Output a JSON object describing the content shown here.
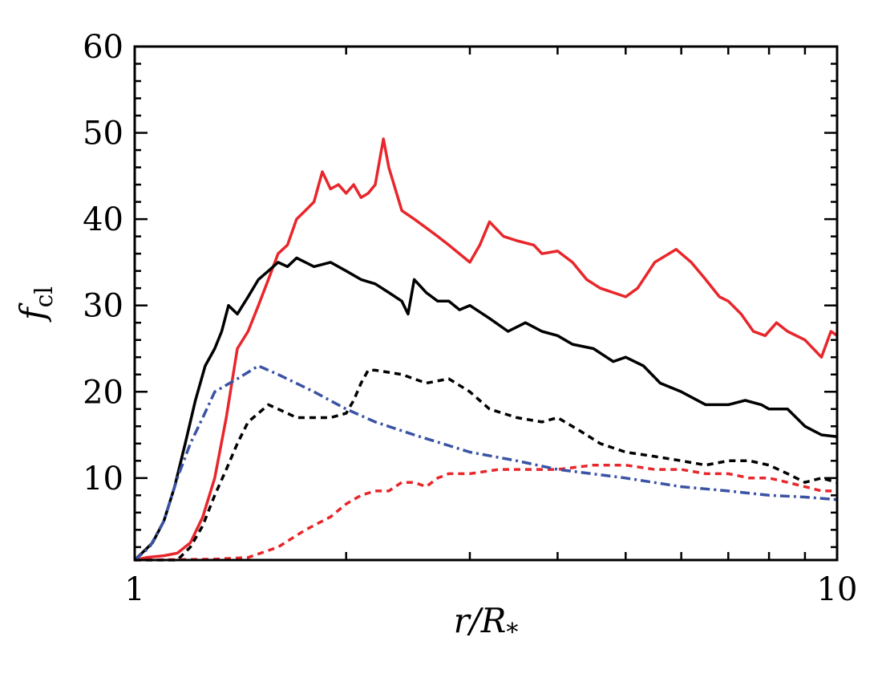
{
  "chart_data": {
    "type": "line",
    "title": "",
    "xlabel": {
      "main": "r/R",
      "sub": "*"
    },
    "ylabel": {
      "main": "f",
      "sub": "cl"
    },
    "xscale": "log",
    "xlim": [
      1,
      10
    ],
    "ylim": [
      0.5,
      60
    ],
    "grid": false,
    "legend": "none",
    "xticks": [
      {
        "value": 1,
        "label": "1"
      },
      {
        "value": 10,
        "label": "10"
      }
    ],
    "yticks": [
      {
        "value": 10,
        "label": "10"
      },
      {
        "value": 20,
        "label": "20"
      },
      {
        "value": 30,
        "label": "30"
      },
      {
        "value": 40,
        "label": "40"
      },
      {
        "value": 50,
        "label": "50"
      },
      {
        "value": 60,
        "label": "60"
      }
    ],
    "series": [
      {
        "color": "#e8262b",
        "style": "solid",
        "points": [
          [
            1.0,
            0.5
          ],
          [
            1.04,
            0.8
          ],
          [
            1.1,
            1.0
          ],
          [
            1.15,
            1.3
          ],
          [
            1.2,
            2.5
          ],
          [
            1.25,
            5.5
          ],
          [
            1.3,
            10
          ],
          [
            1.35,
            17
          ],
          [
            1.4,
            25
          ],
          [
            1.45,
            27
          ],
          [
            1.5,
            30
          ],
          [
            1.55,
            33
          ],
          [
            1.6,
            36
          ],
          [
            1.65,
            37
          ],
          [
            1.7,
            40
          ],
          [
            1.75,
            41
          ],
          [
            1.8,
            42
          ],
          [
            1.85,
            45.5
          ],
          [
            1.9,
            43.5
          ],
          [
            1.95,
            44
          ],
          [
            2.0,
            43
          ],
          [
            2.05,
            44
          ],
          [
            2.1,
            42.5
          ],
          [
            2.15,
            43
          ],
          [
            2.2,
            44
          ],
          [
            2.26,
            49.3
          ],
          [
            2.3,
            46
          ],
          [
            2.4,
            41
          ],
          [
            2.5,
            40
          ],
          [
            2.6,
            39
          ],
          [
            2.7,
            38
          ],
          [
            2.8,
            37
          ],
          [
            3.0,
            35
          ],
          [
            3.1,
            37
          ],
          [
            3.2,
            39.7
          ],
          [
            3.35,
            38
          ],
          [
            3.5,
            37.5
          ],
          [
            3.7,
            37
          ],
          [
            3.8,
            36
          ],
          [
            4.0,
            36.3
          ],
          [
            4.2,
            35
          ],
          [
            4.4,
            33
          ],
          [
            4.6,
            32
          ],
          [
            4.8,
            31.5
          ],
          [
            5.0,
            31
          ],
          [
            5.2,
            32
          ],
          [
            5.5,
            35
          ],
          [
            5.9,
            36.5
          ],
          [
            6.2,
            35
          ],
          [
            6.5,
            33
          ],
          [
            6.8,
            31
          ],
          [
            7.0,
            30.5
          ],
          [
            7.3,
            29
          ],
          [
            7.6,
            27
          ],
          [
            7.9,
            26.5
          ],
          [
            8.2,
            28
          ],
          [
            8.5,
            27
          ],
          [
            9.0,
            26
          ],
          [
            9.5,
            24
          ],
          [
            9.8,
            27
          ],
          [
            10.0,
            26.5
          ]
        ]
      },
      {
        "color": "#000000",
        "style": "solid",
        "points": [
          [
            1.0,
            0.5
          ],
          [
            1.03,
            1.5
          ],
          [
            1.06,
            2.5
          ],
          [
            1.1,
            5
          ],
          [
            1.14,
            9
          ],
          [
            1.18,
            14
          ],
          [
            1.22,
            19
          ],
          [
            1.26,
            23
          ],
          [
            1.3,
            25
          ],
          [
            1.33,
            27
          ],
          [
            1.36,
            30
          ],
          [
            1.4,
            29
          ],
          [
            1.45,
            31
          ],
          [
            1.5,
            33
          ],
          [
            1.55,
            34
          ],
          [
            1.6,
            35
          ],
          [
            1.65,
            34.5
          ],
          [
            1.7,
            35.5
          ],
          [
            1.75,
            35
          ],
          [
            1.8,
            34.5
          ],
          [
            1.9,
            35
          ],
          [
            2.0,
            34
          ],
          [
            2.1,
            33
          ],
          [
            2.2,
            32.5
          ],
          [
            2.3,
            31.5
          ],
          [
            2.4,
            30.5
          ],
          [
            2.45,
            29
          ],
          [
            2.5,
            33
          ],
          [
            2.6,
            31.5
          ],
          [
            2.7,
            30.5
          ],
          [
            2.8,
            30.5
          ],
          [
            2.9,
            29.5
          ],
          [
            3.0,
            30
          ],
          [
            3.2,
            28.5
          ],
          [
            3.4,
            27
          ],
          [
            3.6,
            28
          ],
          [
            3.8,
            27
          ],
          [
            4.0,
            26.5
          ],
          [
            4.2,
            25.5
          ],
          [
            4.5,
            25
          ],
          [
            4.8,
            23.5
          ],
          [
            5.0,
            24
          ],
          [
            5.3,
            23
          ],
          [
            5.6,
            21
          ],
          [
            6.0,
            20
          ],
          [
            6.5,
            18.5
          ],
          [
            7.0,
            18.5
          ],
          [
            7.4,
            19
          ],
          [
            7.8,
            18.5
          ],
          [
            8.0,
            18
          ],
          [
            8.5,
            18
          ],
          [
            9.0,
            16
          ],
          [
            9.5,
            15
          ],
          [
            10.0,
            14.8
          ]
        ]
      },
      {
        "color": "#000000",
        "style": "dashed",
        "points": [
          [
            1.0,
            0.5
          ],
          [
            1.15,
            0.5
          ],
          [
            1.2,
            2
          ],
          [
            1.25,
            4.5
          ],
          [
            1.3,
            8
          ],
          [
            1.35,
            11
          ],
          [
            1.4,
            14
          ],
          [
            1.45,
            16.5
          ],
          [
            1.5,
            17.5
          ],
          [
            1.55,
            18.5
          ],
          [
            1.6,
            18
          ],
          [
            1.65,
            17.5
          ],
          [
            1.7,
            17
          ],
          [
            1.8,
            17
          ],
          [
            1.9,
            17
          ],
          [
            2.0,
            17.5
          ],
          [
            2.05,
            19
          ],
          [
            2.1,
            21
          ],
          [
            2.15,
            22.5
          ],
          [
            2.2,
            22.5
          ],
          [
            2.4,
            22
          ],
          [
            2.6,
            21
          ],
          [
            2.8,
            21.5
          ],
          [
            3.0,
            20
          ],
          [
            3.2,
            18
          ],
          [
            3.5,
            17
          ],
          [
            3.8,
            16.5
          ],
          [
            4.0,
            17
          ],
          [
            4.3,
            15.5
          ],
          [
            4.6,
            14
          ],
          [
            5.0,
            13
          ],
          [
            5.5,
            12.5
          ],
          [
            6.0,
            12
          ],
          [
            6.5,
            11.5
          ],
          [
            7.0,
            12
          ],
          [
            7.5,
            12
          ],
          [
            8.0,
            11.5
          ],
          [
            8.5,
            10.5
          ],
          [
            9.0,
            9.5
          ],
          [
            9.5,
            10
          ],
          [
            10.0,
            9.5
          ]
        ]
      },
      {
        "color": "#e8262b",
        "style": "dashed",
        "points": [
          [
            1.0,
            0.5
          ],
          [
            1.3,
            0.6
          ],
          [
            1.45,
            0.8
          ],
          [
            1.6,
            2
          ],
          [
            1.75,
            4
          ],
          [
            1.9,
            5.5
          ],
          [
            2.0,
            7
          ],
          [
            2.1,
            8
          ],
          [
            2.2,
            8.5
          ],
          [
            2.3,
            8.5
          ],
          [
            2.4,
            9.5
          ],
          [
            2.5,
            9.5
          ],
          [
            2.6,
            9
          ],
          [
            2.7,
            10
          ],
          [
            2.8,
            10.5
          ],
          [
            3.0,
            10.5
          ],
          [
            3.3,
            11
          ],
          [
            3.6,
            11
          ],
          [
            4.0,
            11
          ],
          [
            4.5,
            11.5
          ],
          [
            5.0,
            11.5
          ],
          [
            5.5,
            11
          ],
          [
            6.0,
            11
          ],
          [
            6.5,
            10.5
          ],
          [
            7.0,
            10.5
          ],
          [
            7.5,
            10
          ],
          [
            8.0,
            10
          ],
          [
            8.5,
            9.5
          ],
          [
            9.0,
            9
          ],
          [
            9.5,
            8.5
          ],
          [
            10.0,
            8.5
          ]
        ]
      },
      {
        "color": "#3a53a4",
        "style": "dashdot",
        "points": [
          [
            1.0,
            0.5
          ],
          [
            1.05,
            2
          ],
          [
            1.1,
            5
          ],
          [
            1.15,
            10
          ],
          [
            1.2,
            14
          ],
          [
            1.25,
            17
          ],
          [
            1.3,
            20
          ],
          [
            1.4,
            21.5
          ],
          [
            1.5,
            23
          ],
          [
            1.6,
            22
          ],
          [
            1.8,
            20
          ],
          [
            2.0,
            18
          ],
          [
            2.2,
            16.5
          ],
          [
            2.5,
            15
          ],
          [
            3.0,
            13
          ],
          [
            3.5,
            12
          ],
          [
            4.0,
            11
          ],
          [
            5.0,
            10
          ],
          [
            6.0,
            9
          ],
          [
            7.0,
            8.5
          ],
          [
            8.0,
            8
          ],
          [
            9.0,
            7.8
          ],
          [
            10.0,
            7.5
          ]
        ]
      }
    ]
  }
}
